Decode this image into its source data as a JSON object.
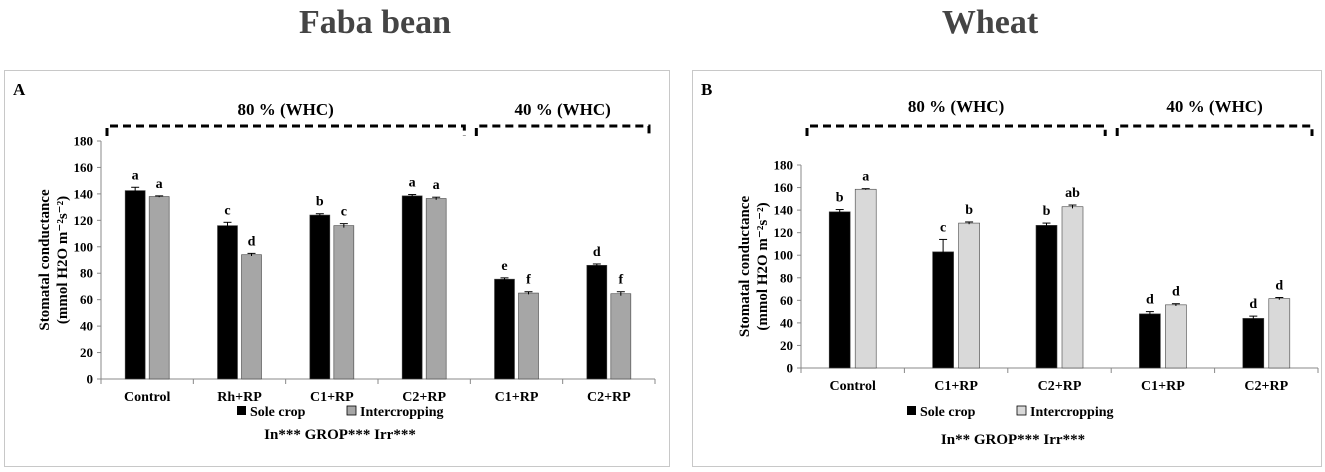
{
  "titles": {
    "left": "Faba bean",
    "right": "Wheat"
  },
  "legend": {
    "sole_label": "Sole crop",
    "inter_label": "Intercropping"
  },
  "colors": {
    "sole": "#000000",
    "inter_a": "#a6a6a6",
    "inter_b": "#d9d9d9",
    "axis": "#888888"
  },
  "chart_data": [
    {
      "type": "bar",
      "panel_label": "A",
      "ylabel_line1": "Stomatal conductance",
      "ylabel_line2": "(mmol H2O m⁻²s⁻²)",
      "ylim": [
        0,
        180
      ],
      "ytick_step": 20,
      "categories": [
        "Control",
        "Rh+RP",
        "C1+RP",
        "C2+RP",
        "C1+RP",
        "C2+RP"
      ],
      "series": [
        {
          "name": "Sole crop",
          "values": [
            142.5,
            116,
            124,
            138.5,
            75.5,
            86
          ],
          "errors": [
            2.5,
            2.5,
            1,
            1,
            1,
            1
          ],
          "letters": [
            "a",
            "c",
            "b",
            "a",
            "e",
            "d"
          ]
        },
        {
          "name": "Intercropping",
          "values": [
            138,
            94,
            116,
            136.5,
            65,
            64.5
          ],
          "errors": [
            0.5,
            1,
            1.5,
            1,
            1,
            1.5
          ],
          "letters": [
            "a",
            "d",
            "c",
            "a",
            "f",
            "f"
          ]
        }
      ],
      "groups": [
        {
          "label": "80 % (WHC)",
          "from": 0,
          "to": 3
        },
        {
          "label": "40 % (WHC)",
          "from": 4,
          "to": 5
        }
      ],
      "stats_note": "In*** GROP*** Irr***"
    },
    {
      "type": "bar",
      "panel_label": "B",
      "ylabel_line1": "Stomatal conductance",
      "ylabel_line2": "(mmol H2O m⁻²s⁻²)",
      "ylim": [
        0,
        180
      ],
      "ytick_step": 20,
      "categories": [
        "Control",
        "C1+RP",
        "C2+RP",
        "C1+RP",
        "C2+RP"
      ],
      "series": [
        {
          "name": "Sole crop",
          "values": [
            138.5,
            103,
            126.5,
            48,
            44
          ],
          "errors": [
            2,
            11,
            2,
            2,
            2
          ],
          "letters": [
            "b",
            "c",
            "b",
            "d",
            "d"
          ]
        },
        {
          "name": "Intercropping",
          "values": [
            158.5,
            128.5,
            143,
            56,
            61.5
          ],
          "errors": [
            0.5,
            1,
            1.5,
            1,
            1
          ],
          "letters": [
            "a",
            "b",
            "ab",
            "d",
            "d"
          ]
        }
      ],
      "groups": [
        {
          "label": "80 % (WHC)",
          "from": 0,
          "to": 2
        },
        {
          "label": "40 % (WHC)",
          "from": 3,
          "to": 4
        }
      ],
      "stats_note": "In** GROP*** Irr***"
    }
  ]
}
